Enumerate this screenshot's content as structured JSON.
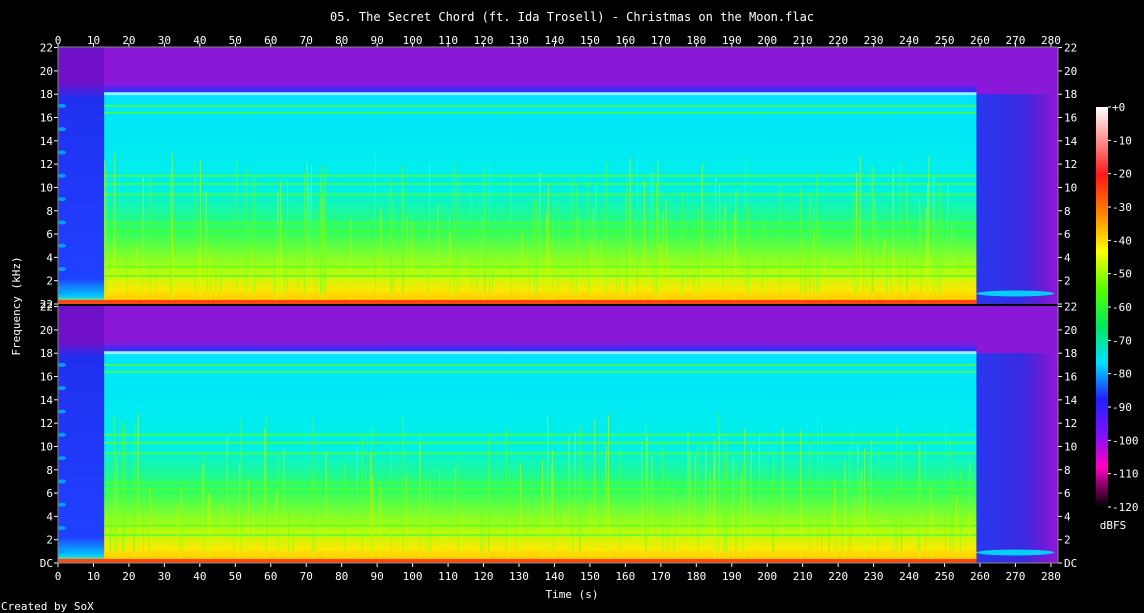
{
  "chart_data": {
    "type": "heatmap",
    "title": "05. The Secret Chord (ft. Ida Trosell) - Christmas on the Moon.flac",
    "xlabel": "Time (s)",
    "ylabel": "Frequency (kHz)",
    "credit": "Created by SoX",
    "colorbar_unit": "dBFS",
    "xlim": [
      0,
      282
    ],
    "ylim_khz": [
      0,
      22.05
    ],
    "channels": 2,
    "x_ticks": [
      0,
      10,
      20,
      30,
      40,
      50,
      60,
      70,
      80,
      90,
      100,
      110,
      120,
      130,
      140,
      150,
      160,
      170,
      180,
      190,
      200,
      210,
      220,
      230,
      240,
      250,
      260,
      270,
      280
    ],
    "y_tick_labels": [
      "DC",
      "2",
      "4",
      "6",
      "8",
      "10",
      "12",
      "14",
      "16",
      "18",
      "20",
      "22"
    ],
    "y_tick_values": [
      0,
      2,
      4,
      6,
      8,
      10,
      12,
      14,
      16,
      18,
      20,
      22
    ],
    "top_channel_bottom_label": "22",
    "colorbar_ticks": [
      "+0",
      "-10",
      "-20",
      "-30",
      "-40",
      "-50",
      "-60",
      "-70",
      "-80",
      "-90",
      "-100",
      "-110",
      "-120"
    ],
    "colorbar_values": [
      0,
      -10,
      -20,
      -30,
      -40,
      -50,
      -60,
      -70,
      -80,
      -90,
      -100,
      -110,
      -120
    ],
    "colors": {
      "background": "#000000",
      "silence": "#7a1ad0",
      "low": "#2020ff",
      "mid_cyan": "#00e8ff",
      "mid_green": "#40ff20",
      "high_yellow": "#ffff00",
      "peak_red": "#ff2020"
    },
    "features": {
      "music_end_s": 259,
      "intro_end_s": 13,
      "lowpass_cutoff_khz": 18.0,
      "tail_fade_end_s": 281
    }
  }
}
